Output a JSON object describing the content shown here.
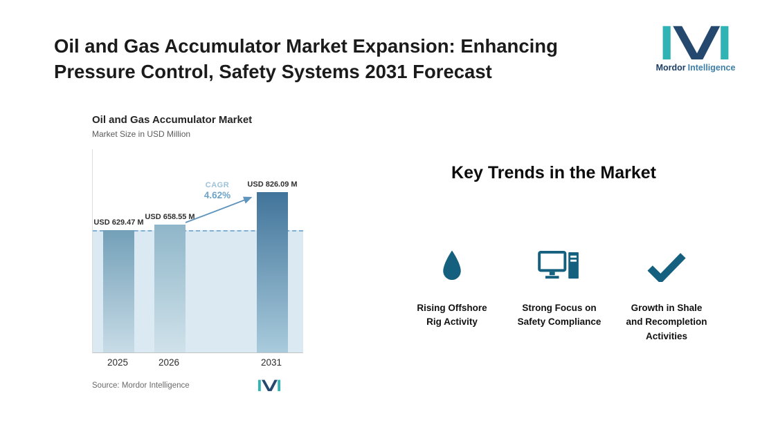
{
  "page": {
    "title_line1": "Oil and Gas Accumulator Market Expansion: Enhancing",
    "title_line2": "Pressure Control, Safety Systems 2031 Forecast"
  },
  "logo": {
    "brand_bold": "Mordor",
    "brand_light": "Intelligence"
  },
  "chart": {
    "title": "Oil and Gas Accumulator Market",
    "subtitle": "Market Size in USD Million",
    "cagr_label": "CAGR",
    "cagr_value": "4.62%",
    "source": "Source: Mordor Intelligence"
  },
  "chart_data": {
    "type": "bar",
    "title": "Oil and Gas Accumulator Market",
    "ylabel": "Market Size in USD Million",
    "categories": [
      "2025",
      "2026",
      "2031"
    ],
    "values": [
      629.47,
      658.55,
      826.09
    ],
    "value_labels": [
      "USD 629.47 M",
      "USD 658.55 M",
      "USD 826.09 M"
    ],
    "cagr_percent": 4.62,
    "reference_line_value": 629.47,
    "ylim": [
      0,
      1050
    ],
    "grid": false,
    "legend": false
  },
  "trends": {
    "heading": "Key Trends in the Market",
    "items": [
      {
        "icon": "water-drop-icon",
        "label": "Rising Offshore Rig Activity"
      },
      {
        "icon": "desktop-computer-icon",
        "label": "Strong Focus on Safety Compliance"
      },
      {
        "icon": "checkmark-icon",
        "label": "Growth in Shale and Recompletion Activities"
      }
    ]
  },
  "colors": {
    "accent_teal": "#2fb3b5",
    "brand_navy": "#24486e",
    "icon_blue": "#15607f",
    "bar_dark": "#41749a",
    "bar_light": "#b9d6e4",
    "reference_area": "#dbe9f2",
    "dashed_line": "#7fb0d4",
    "cagr_text": "#6da3c8"
  }
}
